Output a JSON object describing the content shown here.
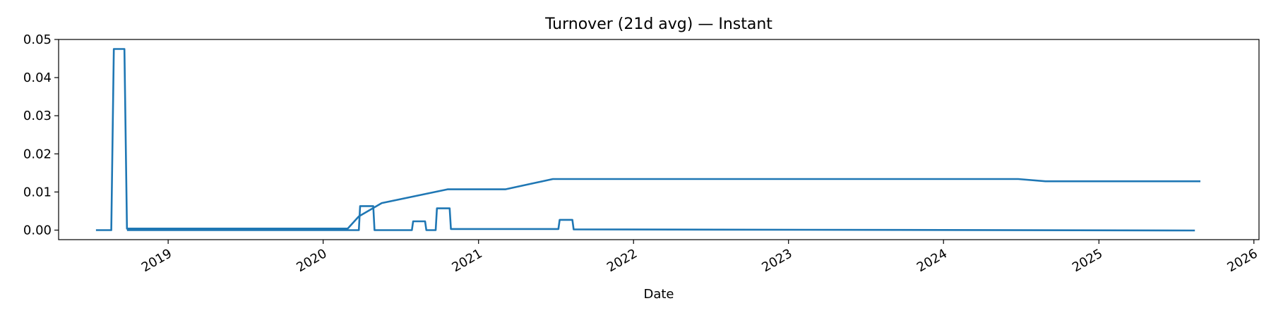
{
  "chart_data": {
    "type": "line",
    "title": "Turnover (21d avg) — Instant",
    "xlabel": "Date",
    "ylabel": "",
    "xlim": [
      "2018-04-18",
      "2026-01-13"
    ],
    "ylim": [
      -0.0025,
      0.05
    ],
    "x_ticks": [
      "2019-01-01",
      "2020-01-01",
      "2021-01-01",
      "2022-01-01",
      "2023-01-01",
      "2024-01-01",
      "2025-01-01",
      "2026-01-01"
    ],
    "x_tick_labels": [
      "2019",
      "2020",
      "2021",
      "2022",
      "2023",
      "2024",
      "2025",
      "2026"
    ],
    "y_ticks": [
      0.0,
      0.01,
      0.02,
      0.03,
      0.04,
      0.05
    ],
    "y_tick_labels": [
      "0.00",
      "0.01",
      "0.02",
      "0.03",
      "0.04",
      "0.05"
    ],
    "grid": false,
    "legend": "none",
    "colors": {
      "line": "#1f77b4"
    },
    "series": [
      {
        "values": [
          [
            "2018-07-15",
            0.0
          ],
          [
            "2018-08-20",
            0.0
          ],
          [
            "2018-08-26",
            0.0475
          ],
          [
            "2018-09-20",
            0.0475
          ],
          [
            "2018-09-26",
            0.0004
          ],
          [
            "2020-02-28",
            0.0004
          ],
          [
            "2020-03-25",
            0.0036
          ],
          [
            "2020-05-18",
            0.0071
          ],
          [
            "2020-10-20",
            0.0107
          ],
          [
            "2021-03-05",
            0.0107
          ],
          [
            "2021-06-25",
            0.0134
          ],
          [
            "2024-06-25",
            0.0134
          ],
          [
            "2024-08-28",
            0.0128
          ],
          [
            "2025-08-28",
            0.0128
          ]
        ]
      },
      {
        "values": [
          [
            "2018-09-26",
            0.0
          ],
          [
            "2020-03-25",
            0.0
          ],
          [
            "2020-03-28",
            0.0063
          ],
          [
            "2020-04-28",
            0.0063
          ],
          [
            "2020-05-01",
            0.0
          ],
          [
            "2020-07-28",
            0.0
          ],
          [
            "2020-07-31",
            0.0023
          ],
          [
            "2020-08-28",
            0.0023
          ],
          [
            "2020-08-31",
            0.0
          ],
          [
            "2020-09-22",
            0.0
          ],
          [
            "2020-09-25",
            0.0057
          ],
          [
            "2020-10-25",
            0.0057
          ],
          [
            "2020-10-28",
            0.0003
          ],
          [
            "2021-07-08",
            0.0003
          ],
          [
            "2021-07-11",
            0.0027
          ],
          [
            "2021-08-10",
            0.0027
          ],
          [
            "2021-08-13",
            0.0002
          ],
          [
            "2025-08-15",
            -0.0001
          ]
        ]
      }
    ]
  }
}
